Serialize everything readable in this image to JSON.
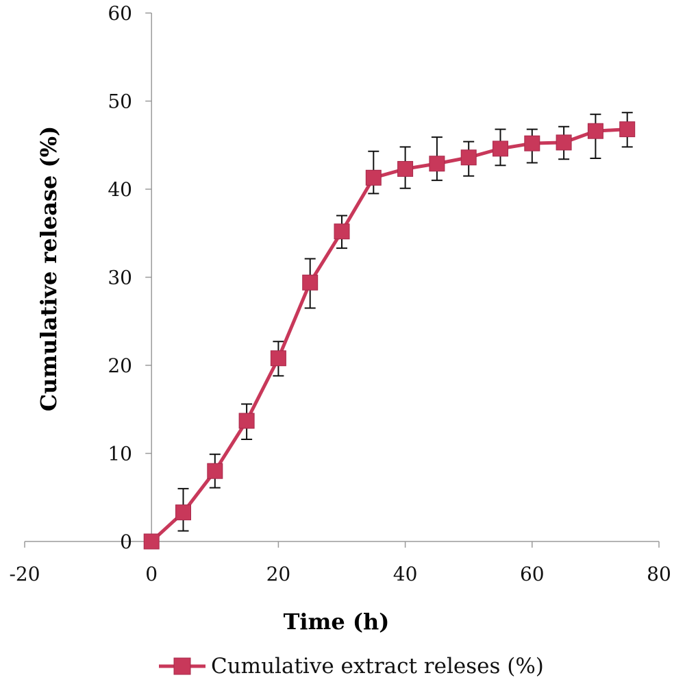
{
  "chart_data": {
    "type": "line",
    "title": "",
    "xlabel": "Time (h)",
    "ylabel": "Cumulative release (%)",
    "xlim": [
      -20,
      80
    ],
    "ylim": [
      0,
      60
    ],
    "x_ticks": [
      "-20",
      "0",
      "20",
      "40",
      "60",
      "80"
    ],
    "y_ticks": [
      "0",
      "10",
      "20",
      "30",
      "40",
      "50",
      "60"
    ],
    "grid": false,
    "legend_position": "bottom",
    "series": [
      {
        "name": "Cumulative extract releses (%)",
        "color": "#c8385a",
        "marker": "square",
        "x": [
          0,
          5,
          10,
          15,
          20,
          25,
          30,
          35,
          40,
          45,
          50,
          55,
          60,
          65,
          70,
          75
        ],
        "y": [
          0,
          3.3,
          8.0,
          13.7,
          20.8,
          29.4,
          35.2,
          41.3,
          42.3,
          42.9,
          43.6,
          44.6,
          45.2,
          45.3,
          46.6,
          46.8
        ],
        "err_up": [
          0,
          2.7,
          1.9,
          1.9,
          1.9,
          2.7,
          1.8,
          3.0,
          2.5,
          3.0,
          1.8,
          2.2,
          1.6,
          1.8,
          1.9,
          1.9
        ],
        "err_down": [
          0,
          2.1,
          1.9,
          2.1,
          2.0,
          2.9,
          1.9,
          1.8,
          2.2,
          1.9,
          2.1,
          1.9,
          2.2,
          1.9,
          3.1,
          2.0
        ]
      }
    ]
  }
}
